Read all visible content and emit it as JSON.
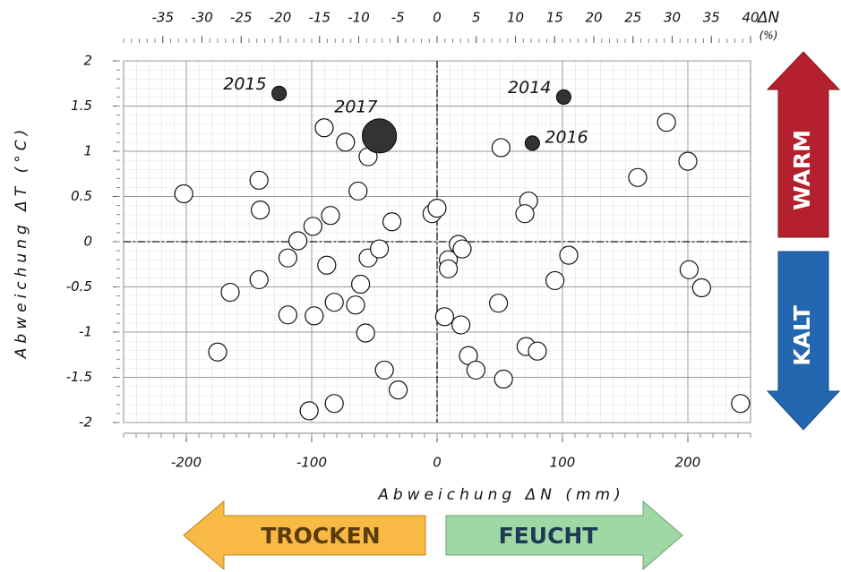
{
  "chart_data": {
    "type": "scatter",
    "xlabel": "Abweichung ΔN (mm)",
    "ylabel": "Abweichung ΔT (°C)",
    "x2label": "ΔN",
    "x2unit": "(%)",
    "xlim": [
      -250,
      250
    ],
    "xticks": [
      -200,
      -100,
      0,
      100,
      200
    ],
    "ylim": [
      -2,
      2
    ],
    "yticks": [
      2,
      {
        "value": 1.5,
        "label": "1.5"
      },
      1,
      {
        "value": 0.5,
        "label": "0.5"
      },
      0,
      {
        "value": -0.5,
        "label": "-0.5"
      },
      -1,
      {
        "value": -1.5,
        "label": "-1.5"
      },
      -2
    ],
    "x2lim": [
      -40,
      40
    ],
    "x2ticks": [
      -35,
      -30,
      -25,
      -20,
      -15,
      -10,
      -5,
      0,
      5,
      10,
      15,
      20,
      25,
      30,
      35,
      40
    ],
    "grid": true,
    "series": [
      {
        "color": "#ffffff",
        "x": [
          -202,
          -142,
          -141,
          -90,
          -73,
          -55,
          -63,
          -85,
          -99,
          -111,
          -119,
          -88,
          -55,
          -46,
          -36,
          -165,
          -142,
          -61,
          -119,
          -98,
          -82,
          -65,
          -57,
          -175,
          -42,
          -31,
          -82,
          -102,
          -4,
          0,
          9,
          9,
          17,
          20,
          6,
          19,
          25,
          31,
          53,
          49,
          51,
          73,
          70,
          105,
          94,
          71,
          80,
          160,
          183,
          200,
          201,
          211,
          242
        ],
        "values": [
          0.53,
          0.68,
          0.35,
          1.26,
          1.1,
          0.94,
          0.56,
          0.29,
          0.17,
          0.01,
          -0.18,
          -0.26,
          -0.18,
          -0.08,
          0.22,
          -0.56,
          -0.42,
          -0.47,
          -0.81,
          -0.82,
          -0.67,
          -0.7,
          -1.01,
          -1.22,
          -1.42,
          -1.64,
          -1.79,
          -1.87,
          0.31,
          0.37,
          -0.2,
          -0.3,
          -0.03,
          -0.08,
          -0.83,
          -0.92,
          -1.26,
          -1.42,
          -1.52,
          -0.68,
          1.04,
          0.45,
          0.31,
          -0.15,
          -0.43,
          -1.16,
          -1.21,
          0.71,
          1.32,
          0.89,
          -0.31,
          -0.51,
          -1.79
        ]
      },
      {
        "color": "#333333",
        "x": [
          -126,
          101,
          76,
          -46
        ],
        "values": [
          1.64,
          1.6,
          1.09,
          1.17
        ],
        "labels": [
          "2015",
          "2014",
          "2016",
          "2017"
        ],
        "sizes": [
          8,
          8,
          8,
          19
        ]
      }
    ],
    "annotations": [
      "WARM",
      "KALT",
      "TROCKEN",
      "FEUCHT"
    ]
  }
}
